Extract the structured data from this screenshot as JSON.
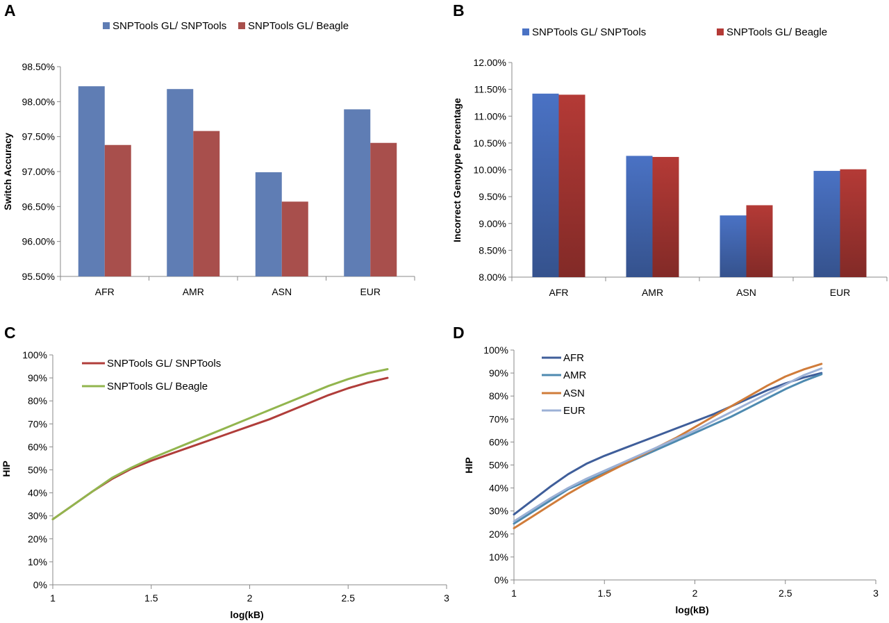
{
  "chart_data": [
    {
      "panel": "A",
      "type": "bar",
      "title": "",
      "xlabel": "",
      "ylabel": "Switch Accuracy",
      "categories": [
        "AFR",
        "AMR",
        "ASN",
        "EUR"
      ],
      "series": [
        {
          "name": "SNPTools GL/ SNPTools",
          "color": "#5f7db4",
          "values": [
            98.22,
            98.18,
            96.99,
            97.89
          ]
        },
        {
          "name": "SNPTools GL/ Beagle",
          "color": "#a84f4c",
          "values": [
            97.38,
            97.58,
            96.57,
            97.41
          ]
        }
      ],
      "ylim": [
        95.5,
        98.5
      ],
      "yticks": [
        95.5,
        96.0,
        96.5,
        97.0,
        97.5,
        98.0,
        98.5
      ],
      "ytick_labels": [
        "95.50%",
        "96.00%",
        "96.50%",
        "97.00%",
        "97.50%",
        "98.00%",
        "98.50%"
      ],
      "legend": "top",
      "grid": false
    },
    {
      "panel": "B",
      "type": "bar",
      "title": "",
      "xlabel": "",
      "ylabel": "Incorrect Genotype Percentage",
      "categories": [
        "AFR",
        "AMR",
        "ASN",
        "EUR"
      ],
      "series": [
        {
          "name": "SNPTools GL/ SNPTools",
          "color": "#4a72c4",
          "values": [
            11.42,
            10.26,
            9.15,
            9.98
          ]
        },
        {
          "name": "SNPTools GL/ Beagle",
          "color": "#b43a36",
          "values": [
            11.4,
            10.24,
            9.34,
            10.01
          ]
        }
      ],
      "ylim": [
        8.0,
        12.0
      ],
      "yticks": [
        8.0,
        8.5,
        9.0,
        9.5,
        10.0,
        10.5,
        11.0,
        11.5,
        12.0
      ],
      "ytick_labels": [
        "8.00%",
        "8.50%",
        "9.00%",
        "9.50%",
        "10.00%",
        "10.50%",
        "11.00%",
        "11.50%",
        "12.00%"
      ],
      "legend": "top",
      "grid": false
    },
    {
      "panel": "C",
      "type": "line",
      "title": "",
      "xlabel": "log(kB)",
      "ylabel": "HIP",
      "xlim": [
        1,
        3
      ],
      "xticks": [
        1,
        1.5,
        2,
        2.5,
        3
      ],
      "xtick_labels": [
        "1",
        "1.5",
        "2",
        "2.5",
        "3"
      ],
      "ylim": [
        0,
        100
      ],
      "yticks": [
        0,
        10,
        20,
        30,
        40,
        50,
        60,
        70,
        80,
        90,
        100
      ],
      "ytick_labels": [
        "0%",
        "10%",
        "20%",
        "30%",
        "40%",
        "50%",
        "60%",
        "70%",
        "80%",
        "90%",
        "100%"
      ],
      "series": [
        {
          "name": "SNPTools GL/ SNPTools",
          "color": "#b03d3a",
          "x": [
            1.0,
            1.1,
            1.2,
            1.3,
            1.4,
            1.5,
            1.6,
            1.7,
            1.8,
            1.9,
            2.0,
            2.1,
            2.2,
            2.3,
            2.4,
            2.5,
            2.6,
            2.7
          ],
          "y": [
            28.5,
            34.5,
            40.5,
            46.0,
            50.5,
            54.0,
            57.0,
            60.0,
            63.0,
            66.0,
            69.0,
            72.0,
            75.5,
            79.0,
            82.5,
            85.5,
            88.0,
            90.0
          ]
        },
        {
          "name": "SNPTools GL/ Beagle",
          "color": "#92b54e",
          "x": [
            1.0,
            1.1,
            1.2,
            1.3,
            1.4,
            1.5,
            1.6,
            1.7,
            1.8,
            1.9,
            2.0,
            2.1,
            2.2,
            2.3,
            2.4,
            2.5,
            2.6,
            2.7
          ],
          "y": [
            28.5,
            34.5,
            40.5,
            46.5,
            51.0,
            55.0,
            58.5,
            62.0,
            65.5,
            69.0,
            72.5,
            76.0,
            79.5,
            83.0,
            86.5,
            89.5,
            92.0,
            93.8
          ]
        }
      ],
      "legend": "top-left",
      "grid": false
    },
    {
      "panel": "D",
      "type": "line",
      "title": "",
      "xlabel": "log(kB)",
      "ylabel": "HIP",
      "xlim": [
        1,
        3
      ],
      "xticks": [
        1,
        1.5,
        2,
        2.5,
        3
      ],
      "xtick_labels": [
        "1",
        "1.5",
        "2",
        "2.5",
        "3"
      ],
      "ylim": [
        0,
        100
      ],
      "yticks": [
        0,
        10,
        20,
        30,
        40,
        50,
        60,
        70,
        80,
        90,
        100
      ],
      "ytick_labels": [
        "0%",
        "10%",
        "20%",
        "30%",
        "40%",
        "50%",
        "60%",
        "70%",
        "80%",
        "90%",
        "100%"
      ],
      "series": [
        {
          "name": "AFR",
          "color": "#3f5e9a",
          "x": [
            1.0,
            1.1,
            1.2,
            1.3,
            1.4,
            1.5,
            1.6,
            1.7,
            1.8,
            1.9,
            2.0,
            2.1,
            2.2,
            2.3,
            2.4,
            2.5,
            2.6,
            2.7
          ],
          "y": [
            28.5,
            34.5,
            40.5,
            46.0,
            50.5,
            54.0,
            57.0,
            60.0,
            63.0,
            66.0,
            69.0,
            72.0,
            75.5,
            79.0,
            82.5,
            85.5,
            88.0,
            90.0
          ]
        },
        {
          "name": "AMR",
          "color": "#4e8ab0",
          "x": [
            1.0,
            1.1,
            1.2,
            1.3,
            1.4,
            1.5,
            1.6,
            1.7,
            1.8,
            1.9,
            2.0,
            2.1,
            2.2,
            2.3,
            2.4,
            2.5,
            2.6,
            2.7
          ],
          "y": [
            24.5,
            29.5,
            34.5,
            39.5,
            43.0,
            46.5,
            50.0,
            53.5,
            57.0,
            60.5,
            64.0,
            67.5,
            71.0,
            75.0,
            79.0,
            83.0,
            86.5,
            89.5
          ]
        },
        {
          "name": "ASN",
          "color": "#d07c3a",
          "x": [
            1.0,
            1.1,
            1.2,
            1.3,
            1.4,
            1.5,
            1.6,
            1.7,
            1.8,
            1.9,
            2.0,
            2.1,
            2.2,
            2.3,
            2.4,
            2.5,
            2.6,
            2.7
          ],
          "y": [
            22.5,
            27.5,
            32.5,
            37.5,
            42.0,
            46.0,
            50.0,
            54.0,
            58.0,
            62.0,
            66.5,
            71.0,
            75.5,
            80.0,
            84.5,
            88.5,
            91.5,
            94.0
          ]
        },
        {
          "name": "EUR",
          "color": "#9cb1d6",
          "x": [
            1.0,
            1.1,
            1.2,
            1.3,
            1.4,
            1.5,
            1.6,
            1.7,
            1.8,
            1.9,
            2.0,
            2.1,
            2.2,
            2.3,
            2.4,
            2.5,
            2.6,
            2.7
          ],
          "y": [
            25.5,
            30.5,
            35.5,
            40.0,
            44.0,
            47.5,
            51.0,
            54.5,
            58.0,
            61.5,
            65.0,
            69.0,
            73.0,
            77.0,
            81.0,
            85.0,
            89.0,
            92.0
          ]
        }
      ],
      "legend": "top-left",
      "grid": false
    }
  ]
}
